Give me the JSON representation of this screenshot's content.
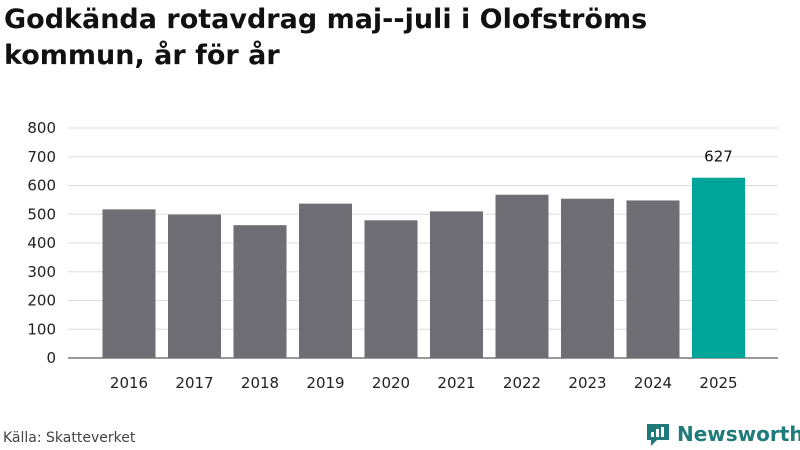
{
  "title": "Godkända rotavdrag maj--juli i Olofströms kommun, år för år",
  "source": "Källa: Skatteverket",
  "brand": "Newsworthy",
  "colors": {
    "bar": "#6f6e75",
    "highlight": "#00a59a",
    "grid": "#dddddd",
    "brand": "#1f7a7a"
  },
  "chart_data": {
    "type": "bar",
    "title": "Godkända rotavdrag maj--juli i Olofströms kommun, år för år",
    "categories": [
      "2016",
      "2017",
      "2018",
      "2019",
      "2020",
      "2021",
      "2022",
      "2023",
      "2024",
      "2025"
    ],
    "values": [
      517,
      499,
      462,
      537,
      479,
      510,
      568,
      554,
      548,
      627
    ],
    "highlight_index": 9,
    "data_labels": [
      {
        "index": 9,
        "text": "627"
      }
    ],
    "xlabel": "",
    "ylabel": "",
    "ylim": [
      0,
      800
    ],
    "yticks": [
      0,
      100,
      200,
      300,
      400,
      500,
      600,
      700,
      800
    ],
    "grid": true,
    "legend": "none"
  }
}
